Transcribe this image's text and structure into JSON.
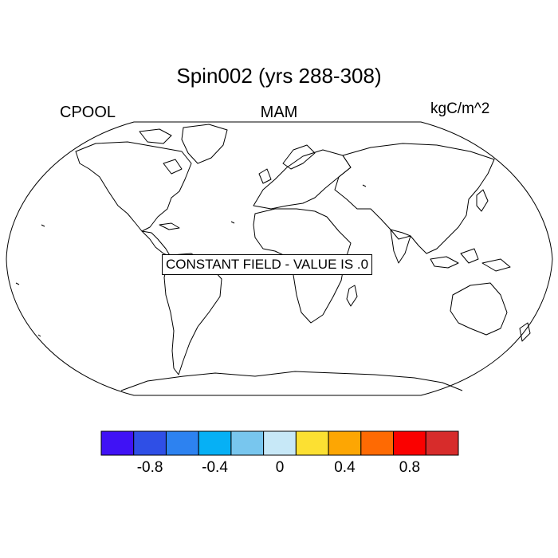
{
  "plot": {
    "title": "Spin002 (yrs 288-308)",
    "left_label": "CPOOL",
    "center_label": "MAM",
    "right_label": "kgC/m^2",
    "note": "CONSTANT FIELD - VALUE IS .0"
  },
  "colorbar": {
    "colors": [
      "#4012f5",
      "#2f4fe6",
      "#2d82f0",
      "#06b0f5",
      "#78c6ee",
      "#c7e8f7",
      "#fce032",
      "#fda603",
      "#fe6a03",
      "#fa0100",
      "#d72c2b"
    ],
    "tick_labels": [
      "-0.8",
      "-0.4",
      "0",
      "0.4",
      "0.8"
    ],
    "tick_values": [
      -0.8,
      -0.4,
      0,
      0.4,
      0.8
    ],
    "range": [
      -1.1,
      1.1
    ]
  }
}
